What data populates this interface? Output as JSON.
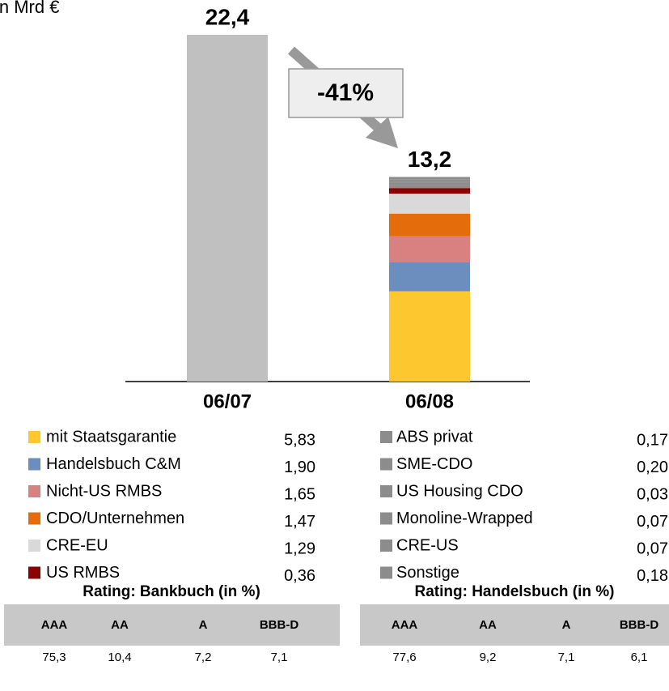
{
  "chart_data": {
    "type": "bar",
    "unit_label": "in Mrd €",
    "categories": [
      "06/07",
      "06/08"
    ],
    "totals": [
      22.4,
      13.2
    ],
    "total_labels": [
      "22,4",
      "13,2"
    ],
    "bar_color": "#c0c0c0",
    "annotation": "-41%",
    "series": [
      {
        "name": "mit Staatsgarantie",
        "color": "#fdc82f",
        "values": [
          null,
          5.83
        ],
        "value_labels": [
          null,
          "5,83"
        ]
      },
      {
        "name": "Handelsbuch C&M",
        "color": "#6c8ebf",
        "values": [
          null,
          1.9
        ],
        "value_labels": [
          null,
          "1,90"
        ]
      },
      {
        "name": "Nicht-US RMBS",
        "color": "#d98080",
        "values": [
          null,
          1.65
        ],
        "value_labels": [
          null,
          "1,65"
        ]
      },
      {
        "name": "CDO/Unternehmen",
        "color": "#e46c0a",
        "values": [
          null,
          1.47
        ],
        "value_labels": [
          null,
          "1,47"
        ]
      },
      {
        "name": "CRE-EU",
        "color": "#d9d9d9",
        "values": [
          null,
          1.29
        ],
        "value_labels": [
          null,
          "1,29"
        ]
      },
      {
        "name": "US RMBS",
        "color": "#8b0000",
        "values": [
          null,
          0.36
        ],
        "value_labels": [
          null,
          "0,36"
        ]
      },
      {
        "name": "ABS privat",
        "color": "#8c8c8c",
        "values": [
          null,
          0.17
        ],
        "value_labels": [
          null,
          "0,17"
        ]
      },
      {
        "name": "SME-CDO",
        "color": "#8c8c8c",
        "values": [
          null,
          0.2
        ],
        "value_labels": [
          null,
          "0,20"
        ]
      },
      {
        "name": "US Housing CDO",
        "color": "#8c8c8c",
        "values": [
          null,
          0.03
        ],
        "value_labels": [
          null,
          "0,03"
        ]
      },
      {
        "name": "Monoline-Wrapped",
        "color": "#8c8c8c",
        "values": [
          null,
          0.07
        ],
        "value_labels": [
          null,
          "0,07"
        ]
      },
      {
        "name": "CRE-US",
        "color": "#8c8c8c",
        "values": [
          null,
          0.07
        ],
        "value_labels": [
          null,
          "0,07"
        ]
      },
      {
        "name": "Sonstige",
        "color": "#8c8c8c",
        "values": [
          null,
          0.18
        ],
        "value_labels": [
          null,
          "0,18"
        ]
      }
    ],
    "ylim": [
      0,
      22.4
    ]
  },
  "tables": [
    {
      "title": "Rating: Bankbuch (in %)",
      "headers": [
        "AAA",
        "AA",
        "A",
        "BBB-D"
      ],
      "rows": [
        [
          "75,3",
          "10,4",
          "7,2",
          "7,1"
        ]
      ]
    },
    {
      "title": "Rating: Handelsbuch (in %)",
      "headers": [
        "AAA",
        "AA",
        "A",
        "BBB-D"
      ],
      "rows": [
        [
          "77,6",
          "9,2",
          "7,1",
          "6,1"
        ]
      ]
    }
  ]
}
